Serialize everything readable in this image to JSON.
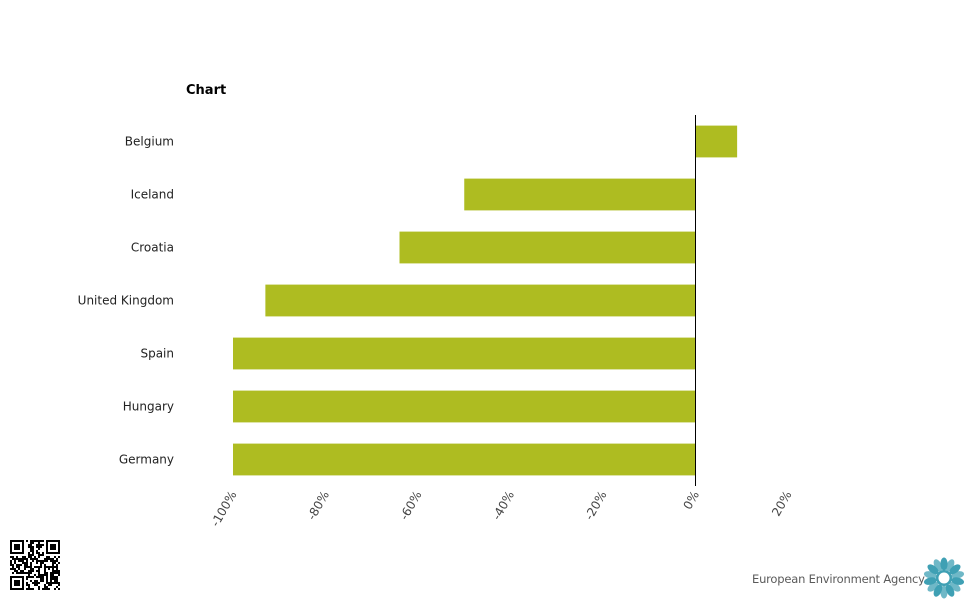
{
  "chart_data": {
    "type": "bar",
    "orientation": "horizontal",
    "title": "Chart",
    "categories": [
      "Belgium",
      "Iceland",
      "Croatia",
      "United Kingdom",
      "Spain",
      "Hungary",
      "Germany"
    ],
    "values": [
      9,
      -50,
      -64,
      -93,
      -100,
      -100,
      -100
    ],
    "xlim": [
      -100,
      20
    ],
    "xticks": [
      "-100%",
      "-80%",
      "-60%",
      "-40%",
      "-20%",
      "0%",
      "20%"
    ],
    "bar_color": "#aebc21",
    "grid": false
  },
  "branding": {
    "agency_name": "European Environment Agency"
  },
  "colors": {
    "logo_teal": "#3fa0b4"
  }
}
